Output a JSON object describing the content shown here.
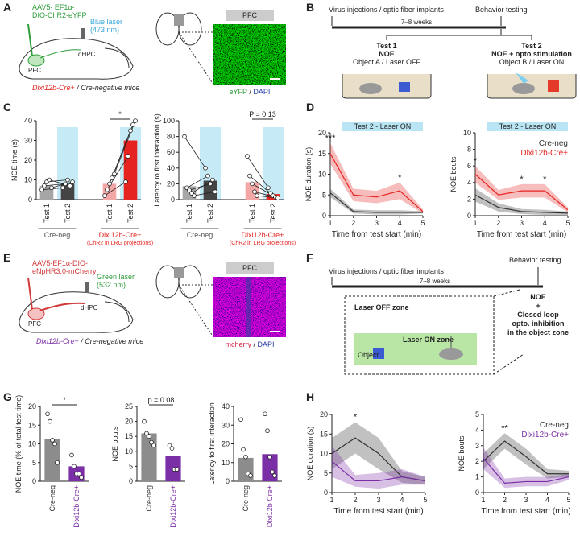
{
  "panel_labels": [
    "A",
    "B",
    "C",
    "D",
    "E",
    "F",
    "G",
    "H"
  ],
  "A": {
    "virus": "AAV5- EF1α-",
    "virus2": "DIO-ChR2-eYFP",
    "laser": "Blue laser",
    "wavelength": "(473 nm)",
    "region1": "PFC",
    "region2": "dHPC",
    "genotype": "Dlxi12b-Cre+",
    "control": " / Cre-negative mice",
    "image_title": "PFC",
    "stain1": "eYFP",
    "stain_sep": " / ",
    "stain2": "DAPI"
  },
  "B": {
    "start": "Virus injections / optic fiber implants",
    "end": "Behavior testing",
    "interval": "7–8 weeks",
    "test1": "Test 1",
    "test1_task": "NOE",
    "test1_cond": "Object A / Laser OFF",
    "test2": "Test 2",
    "test2_task": "NOE + opto stimulation",
    "test2_cond": "Object B / Laser ON"
  },
  "E": {
    "virus": "AAV5-EF1α-DIO-",
    "virus2": "eNpHR3.0-mCherry",
    "laser": "Green laser",
    "wavelength": "(532 nm)",
    "region1": "PFC",
    "region2": "dHPC",
    "genotype": "Dlxi12b-Cre+",
    "control": " / Cre-negative mice",
    "image_title": "PFC",
    "stain1": "mcherry",
    "stain_sep": " / ",
    "stain2": "DAPI"
  },
  "F": {
    "start": "Virus injections / optic fiber implants",
    "end": "Behavior testing",
    "interval": "7–8 weeks",
    "off_zone": "Laser OFF zone",
    "on_zone": "Laser ON zone",
    "object": "Object",
    "task": [
      "NOE",
      "+",
      "Closed loop",
      "opto. inhibition",
      "in the object zone"
    ]
  },
  "chart_data": [
    {
      "type": "bar",
      "ylabel": "NOE time (s)",
      "categories": [
        "Test 1",
        "Test 2",
        "Test 1",
        "Test 2"
      ],
      "values": [
        7,
        8,
        8,
        30
      ],
      "colors": [
        "#a6a6a6",
        "#444444",
        "#f4a7a7",
        "#e52421"
      ],
      "points": [
        [
          5,
          7,
          9,
          10,
          6
        ],
        [
          6,
          8,
          10,
          7,
          9
        ],
        [
          2,
          5,
          8,
          11,
          13
        ],
        [
          9,
          22,
          35,
          38,
          40
        ]
      ],
      "paired": true,
      "ylim": [
        0,
        40
      ],
      "yticks": [
        0,
        10,
        20,
        30,
        40
      ],
      "groups": [
        {
          "name": "Cre-neg",
          "color": "#555555"
        },
        {
          "name": "Dlxi12b-Cre+",
          "color": "#e52421",
          "note": "(ChR2 in LRG projections)"
        }
      ],
      "shade_color": "#c6ebf6",
      "annotations": [
        {
          "text": "*"
        }
      ]
    },
    {
      "type": "bar",
      "ylabel": "Latency to first interaction (s)",
      "categories": [
        "Test 1",
        "Test 2",
        "Test 1",
        "Test 2"
      ],
      "values": [
        17,
        24,
        22,
        7
      ],
      "colors": [
        "#a6a6a6",
        "#444444",
        "#f4a7a7",
        "#e52421"
      ],
      "points": [
        [
          80,
          15,
          12,
          8,
          5
        ],
        [
          40,
          30,
          20,
          25,
          10
        ],
        [
          55,
          30,
          20,
          10,
          5
        ],
        [
          15,
          8,
          5,
          3,
          2
        ]
      ],
      "paired": true,
      "ylim": [
        0,
        100
      ],
      "yticks": [
        0,
        20,
        40,
        60,
        80,
        100
      ],
      "groups": [
        {
          "name": "Cre-neg",
          "color": "#555555"
        },
        {
          "name": "Dlxi12b-Cre+",
          "color": "#e52421",
          "note": "(ChR2 in LRG projections)"
        }
      ],
      "shade_color": "#c6ebf6",
      "annotations": [
        {
          "text": "P = 0.13"
        }
      ]
    },
    {
      "type": "line",
      "header": "Test 2 - Laser ON",
      "ylabel": "NOE duration (s)",
      "xlabel": "Time from test start (min)",
      "x": [
        1,
        2,
        3,
        4,
        5
      ],
      "xlim": [
        1,
        5
      ],
      "xticks": [
        1,
        2,
        3,
        4,
        5
      ],
      "ylim": [
        0,
        20
      ],
      "yticks": [
        0,
        5,
        10,
        15,
        20
      ],
      "series": [
        {
          "name": "Cre-neg",
          "color": "#333333",
          "values": [
            5.5,
            1,
            0.8,
            0.8,
            0.8
          ],
          "errors": [
            1,
            0.5,
            0.5,
            0.5,
            0.3
          ]
        },
        {
          "name": "Dlxi12b-Cre+",
          "color": "#e52421",
          "values": [
            15,
            5,
            4.5,
            6,
            1
          ],
          "errors": [
            2.5,
            1.5,
            1.5,
            2,
            0.5
          ]
        }
      ],
      "annotations": [
        {
          "text": "***",
          "x": 1
        },
        {
          "text": "*",
          "x": 4
        }
      ]
    },
    {
      "type": "line",
      "header": "Test 2 - Laser ON",
      "ylabel": "NOE bouts",
      "xlabel": "Time from test start (min)",
      "x": [
        1,
        2,
        3,
        4,
        5
      ],
      "xlim": [
        1,
        5
      ],
      "xticks": [
        1,
        2,
        3,
        4,
        5
      ],
      "ylim": [
        0,
        10
      ],
      "yticks": [
        0,
        2,
        4,
        6,
        8,
        10
      ],
      "legend": "upper right",
      "series": [
        {
          "name": "Cre-neg",
          "color": "#333333",
          "values": [
            2.5,
            1,
            0.5,
            0.4,
            0.3
          ],
          "errors": [
            0.8,
            0.5,
            0.3,
            0.3,
            0.2
          ]
        },
        {
          "name": "Dlxi12b-Cre+",
          "color": "#e52421",
          "values": [
            5,
            2.5,
            3,
            3,
            0.7
          ],
          "errors": [
            1,
            0.6,
            0.8,
            0.8,
            0.3
          ]
        }
      ],
      "annotations": [
        {
          "text": "*",
          "x": 1
        },
        {
          "text": "*",
          "x": 3
        },
        {
          "text": "*",
          "x": 4
        }
      ]
    },
    {
      "type": "bar",
      "ylabel": "NOE time (% of total test time)",
      "categories": [
        "Cre-neg",
        "Dlxi12b-Cre+"
      ],
      "label_colors": [
        "#333333",
        "#7b2fa6"
      ],
      "values": [
        11.2,
        4
      ],
      "colors": [
        "#8c8c8c",
        "#7b2fa6"
      ],
      "points": [
        [
          18,
          16,
          11,
          10,
          5
        ],
        [
          7,
          4,
          2,
          2,
          1
        ]
      ],
      "ylim": [
        0,
        20
      ],
      "yticks": [
        0,
        5,
        10,
        15,
        20
      ],
      "annotations": [
        {
          "text": "*"
        }
      ]
    },
    {
      "type": "bar",
      "ylabel": "NOE bouts",
      "categories": [
        "Cre-neg",
        "Dlxi12b-Cre+"
      ],
      "label_colors": [
        "#333333",
        "#7b2fa6"
      ],
      "values": [
        16,
        8.5
      ],
      "colors": [
        "#8c8c8c",
        "#7b2fa6"
      ],
      "points": [
        [
          20,
          16,
          15,
          13,
          12
        ],
        [
          12,
          11,
          4,
          4
        ]
      ],
      "ylim": [
        0,
        25
      ],
      "yticks": [
        0,
        5,
        10,
        15,
        20,
        25
      ],
      "annotations": [
        {
          "text": "p = 0.08"
        }
      ]
    },
    {
      "type": "bar",
      "ylabel": "Latency to first interaction",
      "categories": [
        "Cre-neg",
        "Dlxi12b Cre+"
      ],
      "label_colors": [
        "#333333",
        "#7b2fa6"
      ],
      "values": [
        12.5,
        14.5
      ],
      "colors": [
        "#8c8c8c",
        "#7b2fa6"
      ],
      "points": [
        [
          33,
          17,
          13,
          4,
          3
        ],
        [
          36,
          27,
          13,
          5,
          3
        ]
      ],
      "ylim": [
        0,
        40
      ],
      "yticks": [
        0,
        10,
        20,
        30,
        40
      ]
    },
    {
      "type": "line",
      "ylabel": "NOE duration (s)",
      "xlabel": "Time from test start (min)",
      "x": [
        1,
        2,
        3,
        4,
        5
      ],
      "xlim": [
        1,
        5
      ],
      "xticks": [
        1,
        2,
        3,
        4,
        5
      ],
      "ylim": [
        0,
        20
      ],
      "yticks": [
        0,
        5,
        10,
        15,
        20
      ],
      "series": [
        {
          "name": "Cre-neg",
          "color": "#333333",
          "values": [
            10,
            14,
            10,
            4,
            3
          ],
          "errors": [
            4,
            4,
            4,
            1.5,
            1
          ]
        },
        {
          "name": "Dlxi12b-Cre+",
          "color": "#7b2fa6",
          "values": [
            8,
            3,
            3,
            4,
            3
          ],
          "errors": [
            4,
            1.5,
            2,
            2,
            1
          ]
        }
      ],
      "annotations": [
        {
          "text": "*",
          "x": 2
        }
      ]
    },
    {
      "type": "line",
      "ylabel": "NOE bouts",
      "xlabel": "Time from test start (min)",
      "x": [
        1,
        2,
        3,
        4,
        5
      ],
      "xlim": [
        1,
        5
      ],
      "xticks": [
        1,
        2,
        3,
        4,
        5
      ],
      "ylim": [
        0,
        5
      ],
      "yticks": [
        0,
        1,
        2,
        3,
        4,
        5
      ],
      "legend": "upper right",
      "series": [
        {
          "name": "Cre-neg",
          "color": "#333333",
          "values": [
            2,
            3.3,
            2.3,
            1.2,
            1.2
          ],
          "errors": [
            0.5,
            0.5,
            0.5,
            0.3,
            0.2
          ]
        },
        {
          "name": "Dlxi12b-Cre+",
          "color": "#7b2fa6",
          "values": [
            2.2,
            0.6,
            0.7,
            0.7,
            1
          ],
          "errors": [
            0.7,
            0.3,
            0.3,
            0.3,
            0.2
          ]
        }
      ],
      "annotations": [
        {
          "text": "**",
          "x": 2
        }
      ]
    }
  ]
}
